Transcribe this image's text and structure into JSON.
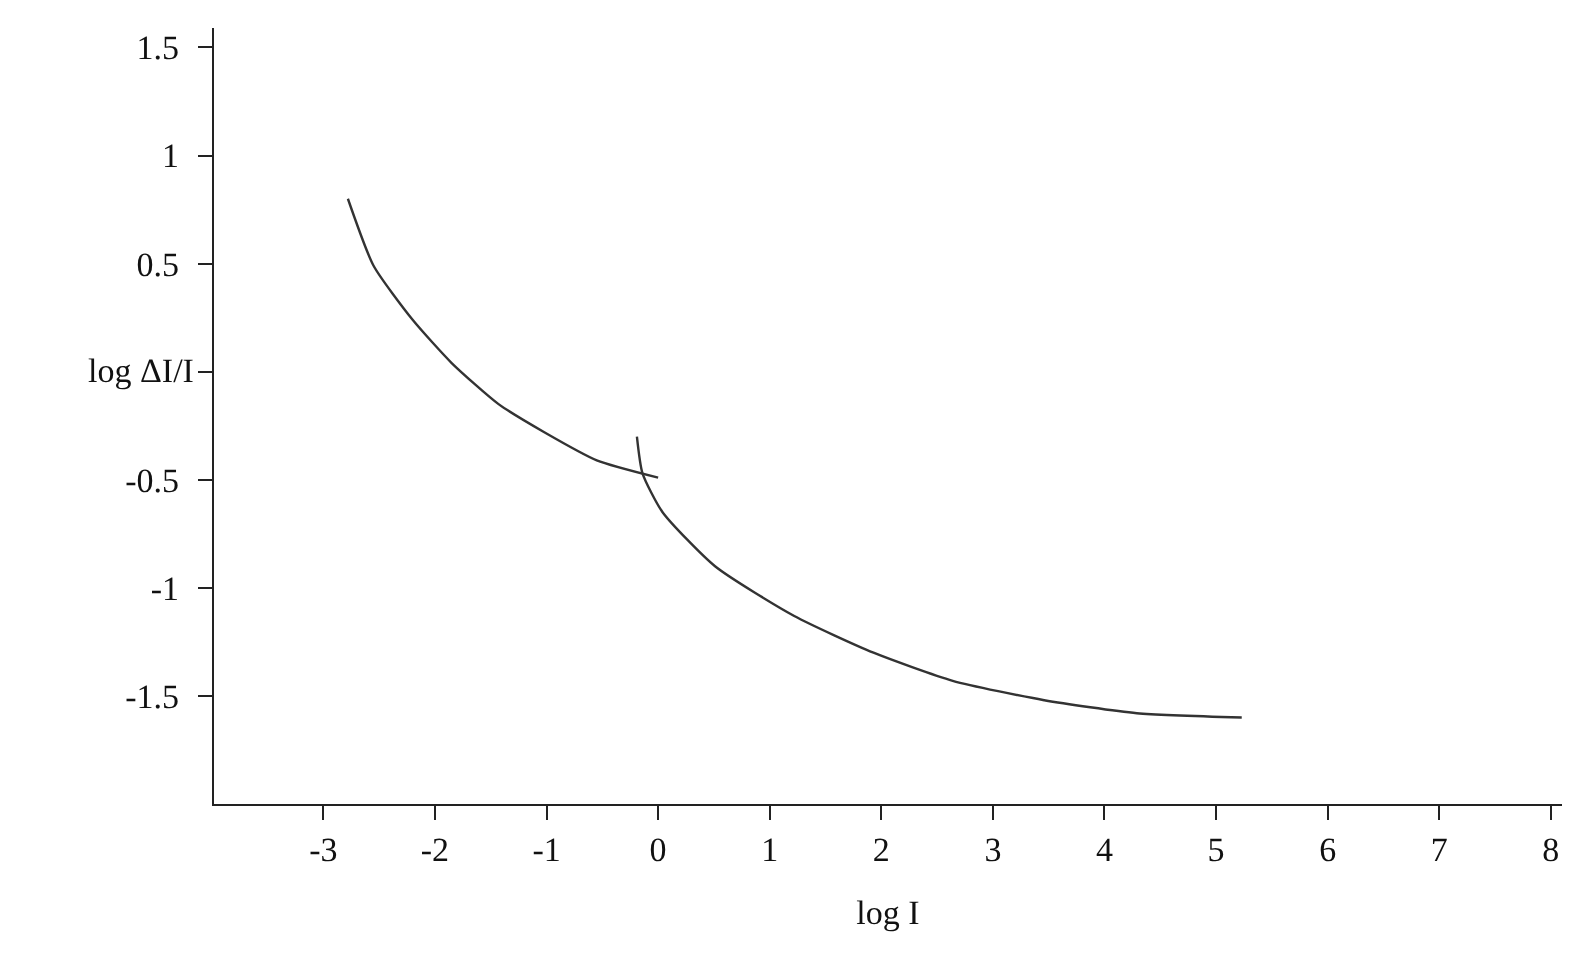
{
  "chart_data": {
    "type": "line",
    "xlabel": "log I",
    "ylabel": "log ΔI/I",
    "xlim": [
      -3.98,
      8.1
    ],
    "ylim": [
      -2,
      1.59
    ],
    "xticks": [
      -3,
      -2,
      -1,
      0,
      1,
      2,
      3,
      4,
      5,
      6,
      7,
      8
    ],
    "yticks": [
      -1.5,
      -1,
      -0.5,
      {
        "value": 0,
        "label": null
      },
      0.5,
      1,
      1.5
    ],
    "marker": "none",
    "line_style": "solid",
    "series": [
      {
        "color": "#333333",
        "x": [
          -2.78,
          -2.55,
          -2.2,
          -1.85,
          -1.43,
          -1.02,
          -0.55,
          0
        ],
        "values": [
          0.8,
          0.49,
          0.24,
          0.04,
          -0.15,
          -0.28,
          -0.41,
          -0.49
        ]
      },
      {
        "color": "#333333",
        "x": [
          -0.19,
          -0.14,
          0.04,
          0.51,
          1.22,
          1.93,
          2.64,
          3.46,
          4.29,
          5.23
        ],
        "values": [
          -0.3,
          -0.47,
          -0.65,
          -0.9,
          -1.13,
          -1.3,
          -1.43,
          -1.52,
          -1.58,
          -1.6
        ]
      }
    ]
  }
}
